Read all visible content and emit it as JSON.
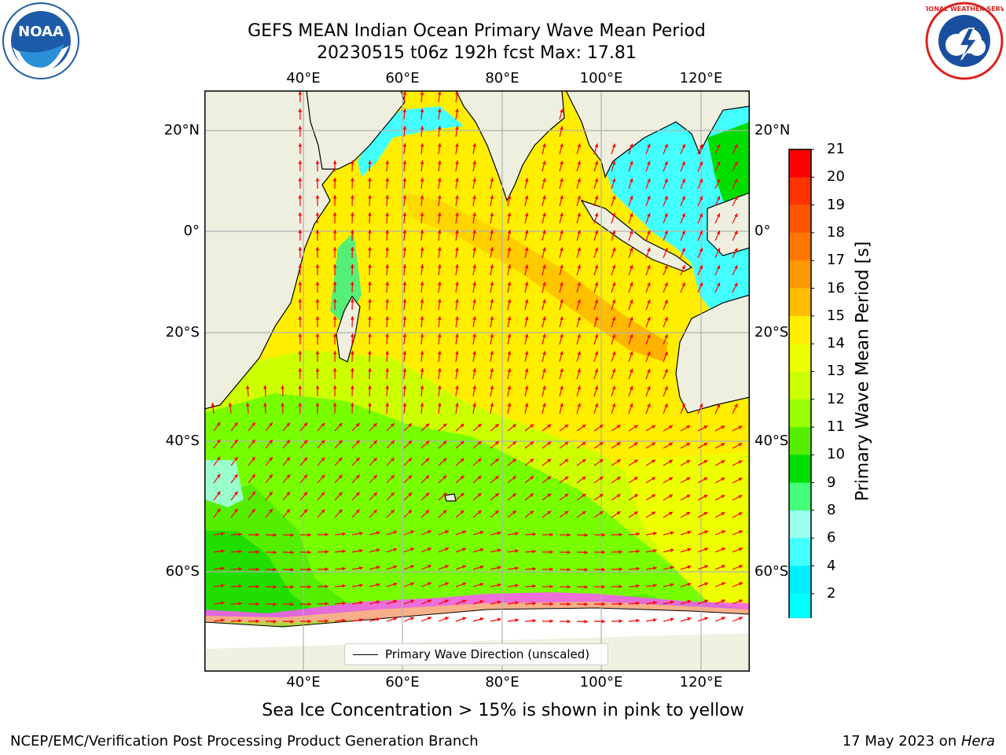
{
  "header": {
    "title_line1": "GEFS MEAN Indian Ocean Primary Wave Mean Period",
    "title_line2": "20230515 t06z 192h fcst   Max: 17.81"
  },
  "logos": {
    "left": {
      "name": "noaa-logo",
      "text": "NOAA"
    },
    "right": {
      "name": "national-weather-service-logo",
      "text": "NATIONAL WEATHER SERVICE"
    }
  },
  "map": {
    "lon_labels": [
      "40°E",
      "60°E",
      "80°E",
      "100°E",
      "120°E"
    ],
    "lat_labels": [
      "20°N",
      "0°",
      "20°S",
      "40°S",
      "60°S"
    ],
    "land_color": "#efefdf",
    "arrow_color": "#ff0000",
    "grid": true,
    "legend": "Primary Wave Direction (unscaled)"
  },
  "colorbar": {
    "label": "Primary Wave Mean Period [s]",
    "ticks": [
      "21",
      "20",
      "19",
      "18",
      "17",
      "16",
      "15",
      "14",
      "13",
      "12",
      "11",
      "10",
      "9",
      "8",
      "6",
      "4",
      "2"
    ],
    "colors": [
      "#ff0000",
      "#ff3300",
      "#ff5500",
      "#ff7700",
      "#ff9900",
      "#ffbb00",
      "#ffee00",
      "#eeff00",
      "#ccff00",
      "#99ff00",
      "#55ee00",
      "#00dd00",
      "#44ff77",
      "#99ffee",
      "#44ffff",
      "#00eeff",
      "#00ffff",
      "#0088ff",
      "#0000ff"
    ]
  },
  "caption": "Sea Ice Concentration > 15% is shown in pink to yellow",
  "footer": {
    "left": "NCEP/EMC/Verification Post Processing Product Generation Branch",
    "right_date": "17 May 2023 on ",
    "right_machine": "Hera"
  }
}
